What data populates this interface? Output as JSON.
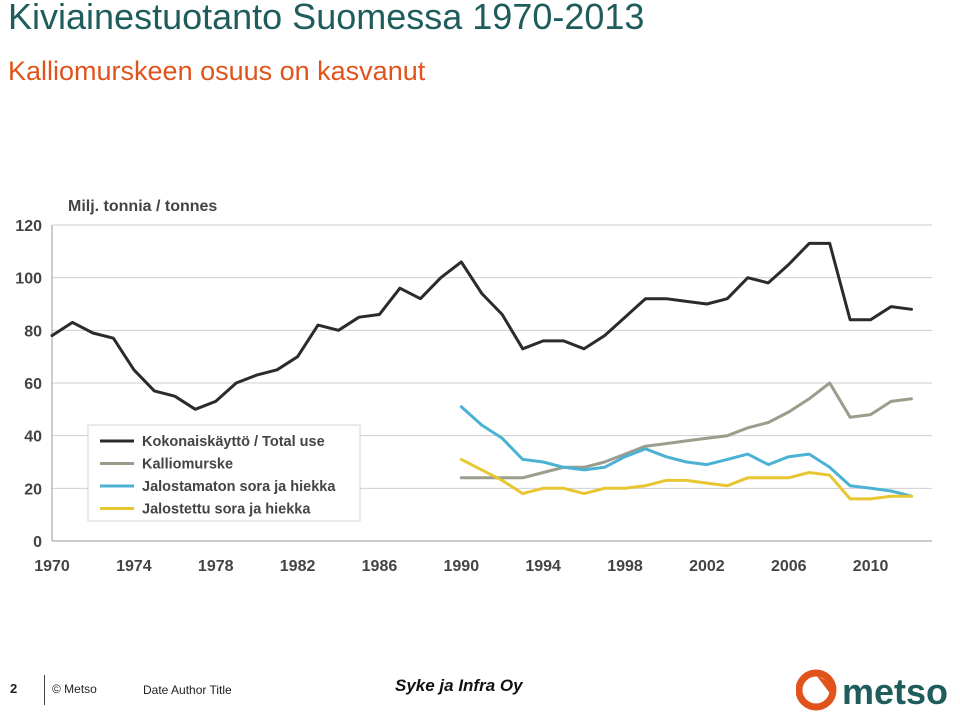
{
  "slide": {
    "title": "Kiviainestuotanto Suomessa 1970-2013",
    "subtitle": "Kalliomurskeen osuus on kasvanut"
  },
  "footer": {
    "page_number": "2",
    "copyright": "© Metso",
    "meta": "Date Author Title",
    "source": "Syke ja Infra Oy",
    "logo_text": "metso"
  },
  "colors": {
    "title": "#1f5c5c",
    "subtitle": "#e0531b",
    "logo": "#e0531b",
    "logo_text": "#1f5c5c"
  },
  "chart_data": {
    "type": "line",
    "unit_label": "Milj. tonnia / tonnes",
    "xlim": [
      1970,
      2013
    ],
    "ylim": [
      0,
      120
    ],
    "x_ticks": [
      1970,
      1974,
      1978,
      1982,
      1986,
      1990,
      1994,
      1998,
      2002,
      2006,
      2010
    ],
    "y_ticks": [
      0,
      20,
      40,
      60,
      80,
      100,
      120
    ],
    "grid": true,
    "legend_position": "bottom-left",
    "series": [
      {
        "name": "Kokonaiskäyttö / Total use",
        "color": "#2b2b2b",
        "points": [
          [
            1970,
            78
          ],
          [
            1971,
            83
          ],
          [
            1972,
            79
          ],
          [
            1973,
            77
          ],
          [
            1974,
            65
          ],
          [
            1975,
            57
          ],
          [
            1976,
            55
          ],
          [
            1977,
            50
          ],
          [
            1978,
            53
          ],
          [
            1979,
            60
          ],
          [
            1980,
            63
          ],
          [
            1981,
            65
          ],
          [
            1982,
            70
          ],
          [
            1983,
            82
          ],
          [
            1984,
            80
          ],
          [
            1985,
            85
          ],
          [
            1986,
            86
          ],
          [
            1987,
            96
          ],
          [
            1988,
            92
          ],
          [
            1989,
            100
          ],
          [
            1990,
            106
          ],
          [
            1991,
            94
          ],
          [
            1992,
            86
          ],
          [
            1993,
            73
          ],
          [
            1994,
            76
          ],
          [
            1995,
            76
          ],
          [
            1996,
            73
          ],
          [
            1997,
            78
          ],
          [
            1998,
            85
          ],
          [
            1999,
            92
          ],
          [
            2000,
            92
          ],
          [
            2001,
            91
          ],
          [
            2002,
            90
          ],
          [
            2003,
            92
          ],
          [
            2004,
            100
          ],
          [
            2005,
            98
          ],
          [
            2006,
            105
          ],
          [
            2007,
            113
          ],
          [
            2008,
            113
          ],
          [
            2009,
            84
          ],
          [
            2010,
            84
          ],
          [
            2011,
            89
          ],
          [
            2012,
            88
          ]
        ]
      },
      {
        "name": "Kalliomurske",
        "color": "#9a9d8c",
        "points": [
          [
            1990,
            24
          ],
          [
            1991,
            24
          ],
          [
            1992,
            24
          ],
          [
            1993,
            24
          ],
          [
            1994,
            26
          ],
          [
            1995,
            28
          ],
          [
            1996,
            28
          ],
          [
            1997,
            30
          ],
          [
            1998,
            33
          ],
          [
            1999,
            36
          ],
          [
            2000,
            37
          ],
          [
            2001,
            38
          ],
          [
            2002,
            39
          ],
          [
            2003,
            40
          ],
          [
            2004,
            43
          ],
          [
            2005,
            45
          ],
          [
            2006,
            49
          ],
          [
            2007,
            54
          ],
          [
            2008,
            60
          ],
          [
            2009,
            47
          ],
          [
            2010,
            48
          ],
          [
            2011,
            53
          ],
          [
            2012,
            54
          ]
        ]
      },
      {
        "name": "Jalostamaton sora ja hiekka",
        "color": "#4cb2d4",
        "points": [
          [
            1990,
            51
          ],
          [
            1991,
            44
          ],
          [
            1992,
            39
          ],
          [
            1993,
            31
          ],
          [
            1994,
            30
          ],
          [
            1995,
            28
          ],
          [
            1996,
            27
          ],
          [
            1997,
            28
          ],
          [
            1998,
            32
          ],
          [
            1999,
            35
          ],
          [
            2000,
            32
          ],
          [
            2001,
            30
          ],
          [
            2002,
            29
          ],
          [
            2003,
            31
          ],
          [
            2004,
            33
          ],
          [
            2005,
            29
          ],
          [
            2006,
            32
          ],
          [
            2007,
            33
          ],
          [
            2008,
            28
          ],
          [
            2009,
            21
          ],
          [
            2010,
            20
          ],
          [
            2011,
            19
          ],
          [
            2012,
            17
          ]
        ]
      },
      {
        "name": "Jalostettu sora ja hiekka",
        "color": "#e8c632",
        "points": [
          [
            1990,
            31
          ],
          [
            1991,
            27
          ],
          [
            1992,
            23
          ],
          [
            1993,
            18
          ],
          [
            1994,
            20
          ],
          [
            1995,
            20
          ],
          [
            1996,
            18
          ],
          [
            1997,
            20
          ],
          [
            1998,
            20
          ],
          [
            1999,
            21
          ],
          [
            2000,
            23
          ],
          [
            2001,
            23
          ],
          [
            2002,
            22
          ],
          [
            2003,
            21
          ],
          [
            2004,
            24
          ],
          [
            2005,
            24
          ],
          [
            2006,
            24
          ],
          [
            2007,
            26
          ],
          [
            2008,
            25
          ],
          [
            2009,
            16
          ],
          [
            2010,
            16
          ],
          [
            2011,
            17
          ],
          [
            2012,
            17
          ]
        ]
      }
    ]
  }
}
